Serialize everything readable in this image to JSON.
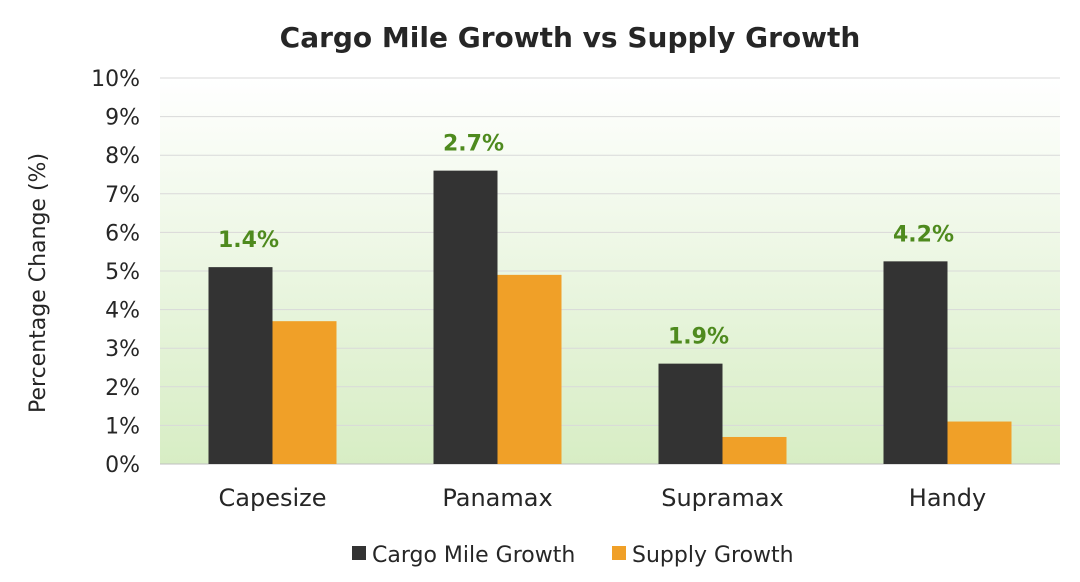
{
  "chart_data": {
    "type": "bar",
    "title": "Cargo Mile Growth vs Supply Growth",
    "xlabel": "",
    "ylabel": "Percentage Change (%)",
    "ylim": [
      0,
      10
    ],
    "yticks": [
      "0%",
      "1%",
      "2%",
      "3%",
      "4%",
      "5%",
      "6%",
      "7%",
      "8%",
      "9%",
      "10%"
    ],
    "categories": [
      "Capesize",
      "Panamax",
      "Supramax",
      "Handy"
    ],
    "series": [
      {
        "name": "Cargo Mile Growth",
        "color": "#333333",
        "values": [
          5.1,
          7.6,
          2.6,
          5.25
        ]
      },
      {
        "name": "Supply Growth",
        "color": "#F0A028",
        "values": [
          3.7,
          4.9,
          0.7,
          1.1
        ]
      }
    ],
    "annotations": {
      "color": "#4E8A1E",
      "labels": [
        "1.4%",
        "2.7%",
        "1.9%",
        "4.2%"
      ]
    },
    "grid": true,
    "legend_position": "bottom",
    "background_gradient": [
      "#FFFFFF",
      "#D7EDC4"
    ]
  }
}
